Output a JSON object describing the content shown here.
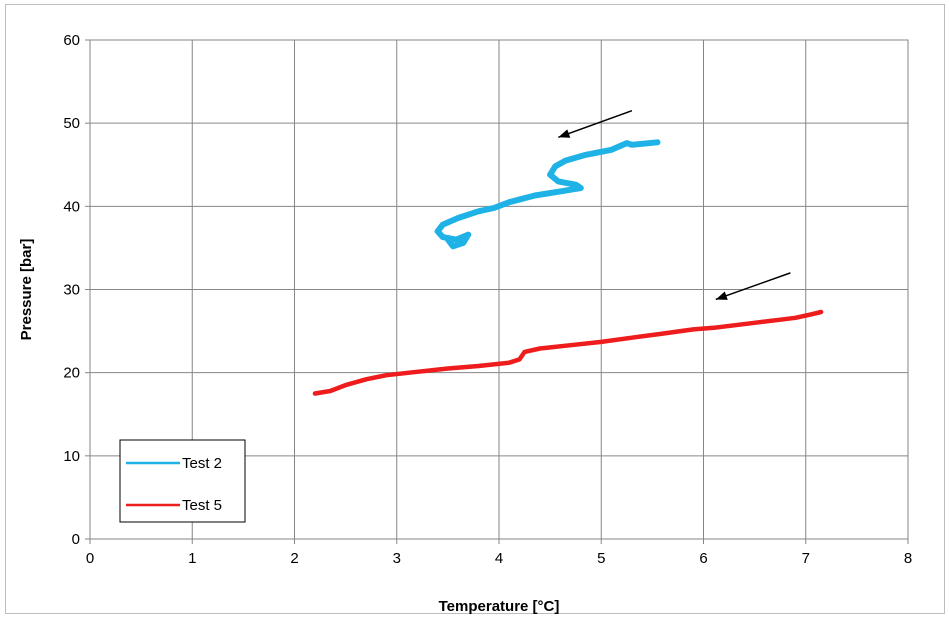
{
  "chart_data": {
    "type": "line",
    "title": "",
    "xlabel": "Temperature [°C]",
    "ylabel": "Pressure [bar]",
    "xlim": [
      0,
      8
    ],
    "ylim": [
      0,
      60
    ],
    "xticks": [
      0,
      1,
      2,
      3,
      4,
      5,
      6,
      7,
      8
    ],
    "yticks": [
      0,
      10,
      20,
      30,
      40,
      50,
      60
    ],
    "x_tick_labels": [
      "0",
      "1",
      "2",
      "3",
      "4",
      "5",
      "6",
      "7",
      "8"
    ],
    "y_tick_labels": [
      "0",
      "10",
      "20",
      "30",
      "40",
      "50",
      "60"
    ],
    "grid": true,
    "legend_position": "bottom-left",
    "series": [
      {
        "name": "Test 2",
        "color": "#1fb2e6",
        "x": [
          5.55,
          5.3,
          5.25,
          5.1,
          4.85,
          4.65,
          4.55,
          4.5,
          4.58,
          4.75,
          4.8,
          4.6,
          4.35,
          4.1,
          3.95,
          3.8,
          3.6,
          3.45,
          3.4,
          3.45,
          3.58,
          3.7,
          3.65,
          3.55,
          3.5
        ],
        "y": [
          47.7,
          47.4,
          47.6,
          46.8,
          46.2,
          45.5,
          44.8,
          43.8,
          43.0,
          42.6,
          42.2,
          41.8,
          41.3,
          40.5,
          39.8,
          39.4,
          38.6,
          37.8,
          37.0,
          36.3,
          36.0,
          36.6,
          35.6,
          35.2,
          36.0
        ]
      },
      {
        "name": "Test 5",
        "color": "#ee1c1c",
        "x": [
          7.15,
          7.05,
          6.9,
          6.7,
          6.5,
          6.3,
          6.1,
          5.9,
          5.6,
          5.3,
          5.0,
          4.7,
          4.4,
          4.25,
          4.2,
          4.1,
          3.8,
          3.5,
          3.2,
          2.9,
          2.7,
          2.5,
          2.35,
          2.2
        ],
        "y": [
          27.3,
          27.0,
          26.6,
          26.3,
          26.0,
          25.7,
          25.4,
          25.2,
          24.7,
          24.2,
          23.7,
          23.3,
          22.9,
          22.5,
          21.6,
          21.2,
          20.8,
          20.5,
          20.1,
          19.7,
          19.2,
          18.5,
          17.8,
          17.5
        ]
      }
    ],
    "annotations": [
      {
        "type": "arrow",
        "from": [
          5.3,
          51.5
        ],
        "to": [
          4.58,
          48.3
        ]
      },
      {
        "type": "arrow",
        "from": [
          6.85,
          32.0
        ],
        "to": [
          6.12,
          28.8
        ]
      }
    ]
  }
}
